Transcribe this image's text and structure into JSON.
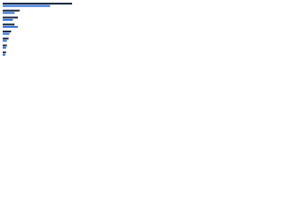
{
  "chart_data": {
    "type": "hbar",
    "categories": [
      null,
      null,
      null,
      null,
      null,
      null,
      null,
      null
    ],
    "series": [
      {
        "color": "#1d2b45",
        "values": [
          82,
          20,
          18,
          14,
          10,
          7,
          5,
          4
        ]
      },
      {
        "color": "#2f6fd6",
        "values": [
          56,
          14,
          12,
          18,
          8,
          5,
          4,
          3
        ]
      }
    ],
    "xlim": [
      0,
      100
    ]
  }
}
